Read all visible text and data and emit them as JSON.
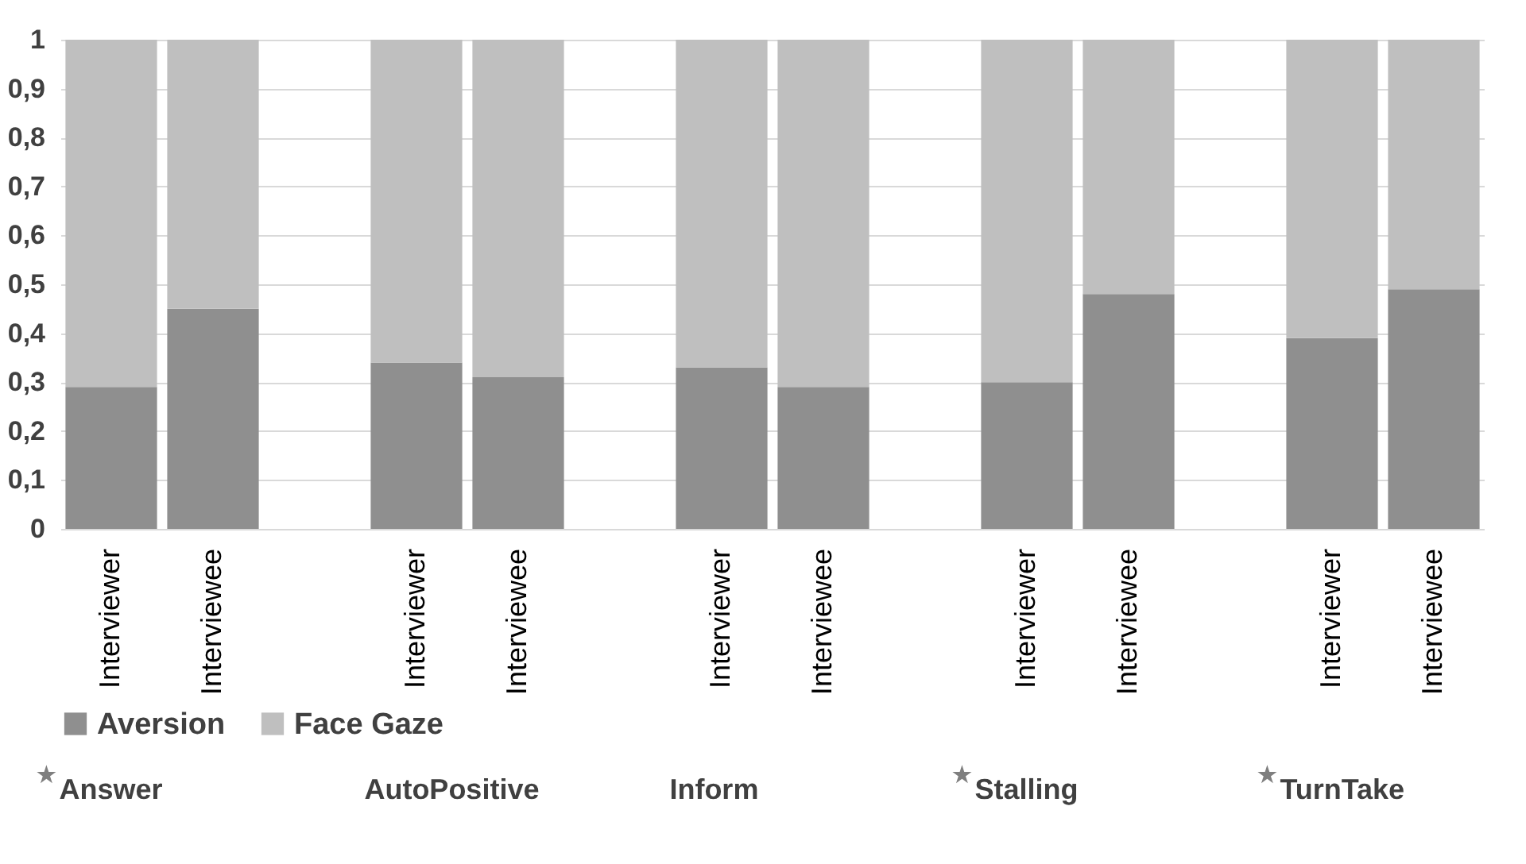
{
  "chart_data": {
    "type": "bar",
    "stacked": true,
    "categories": [
      "Interviewer",
      "Interviewee",
      null,
      "Interviewer",
      "Interviewee",
      null,
      "Interviewer",
      "Interviewee",
      null,
      "Interviewer",
      "Interviewee",
      null,
      "Interviewer",
      "Interviewee"
    ],
    "series": [
      {
        "name": "Aversion",
        "color": "#8f8f8f",
        "values": [
          0.29,
          0.45,
          null,
          0.34,
          0.31,
          null,
          0.33,
          0.29,
          null,
          0.3,
          0.48,
          null,
          0.39,
          0.49
        ]
      },
      {
        "name": "Face Gaze",
        "color": "#bfbfbf",
        "values": [
          0.71,
          0.55,
          null,
          0.66,
          0.69,
          null,
          0.67,
          0.71,
          null,
          0.7,
          0.52,
          null,
          0.61,
          0.51
        ]
      }
    ],
    "ylim": [
      0,
      1
    ],
    "yticks": [
      0,
      {
        "value": 0.1,
        "label": "0,1"
      },
      {
        "value": 0.2,
        "label": "0,2"
      },
      {
        "value": 0.3,
        "label": "0,3"
      },
      {
        "value": 0.4,
        "label": "0,4"
      },
      {
        "value": 0.5,
        "label": "0,5"
      },
      {
        "value": 0.6,
        "label": "0,6"
      },
      {
        "value": 0.7,
        "label": "0,7"
      },
      {
        "value": 0.8,
        "label": "0,8"
      },
      {
        "value": 0.9,
        "label": "0,9"
      },
      1
    ],
    "grid": "y",
    "legend": "bottom",
    "annotations": [
      "Answer",
      "AutoPositive",
      "Inform",
      "Stalling",
      "TurnTake"
    ]
  }
}
